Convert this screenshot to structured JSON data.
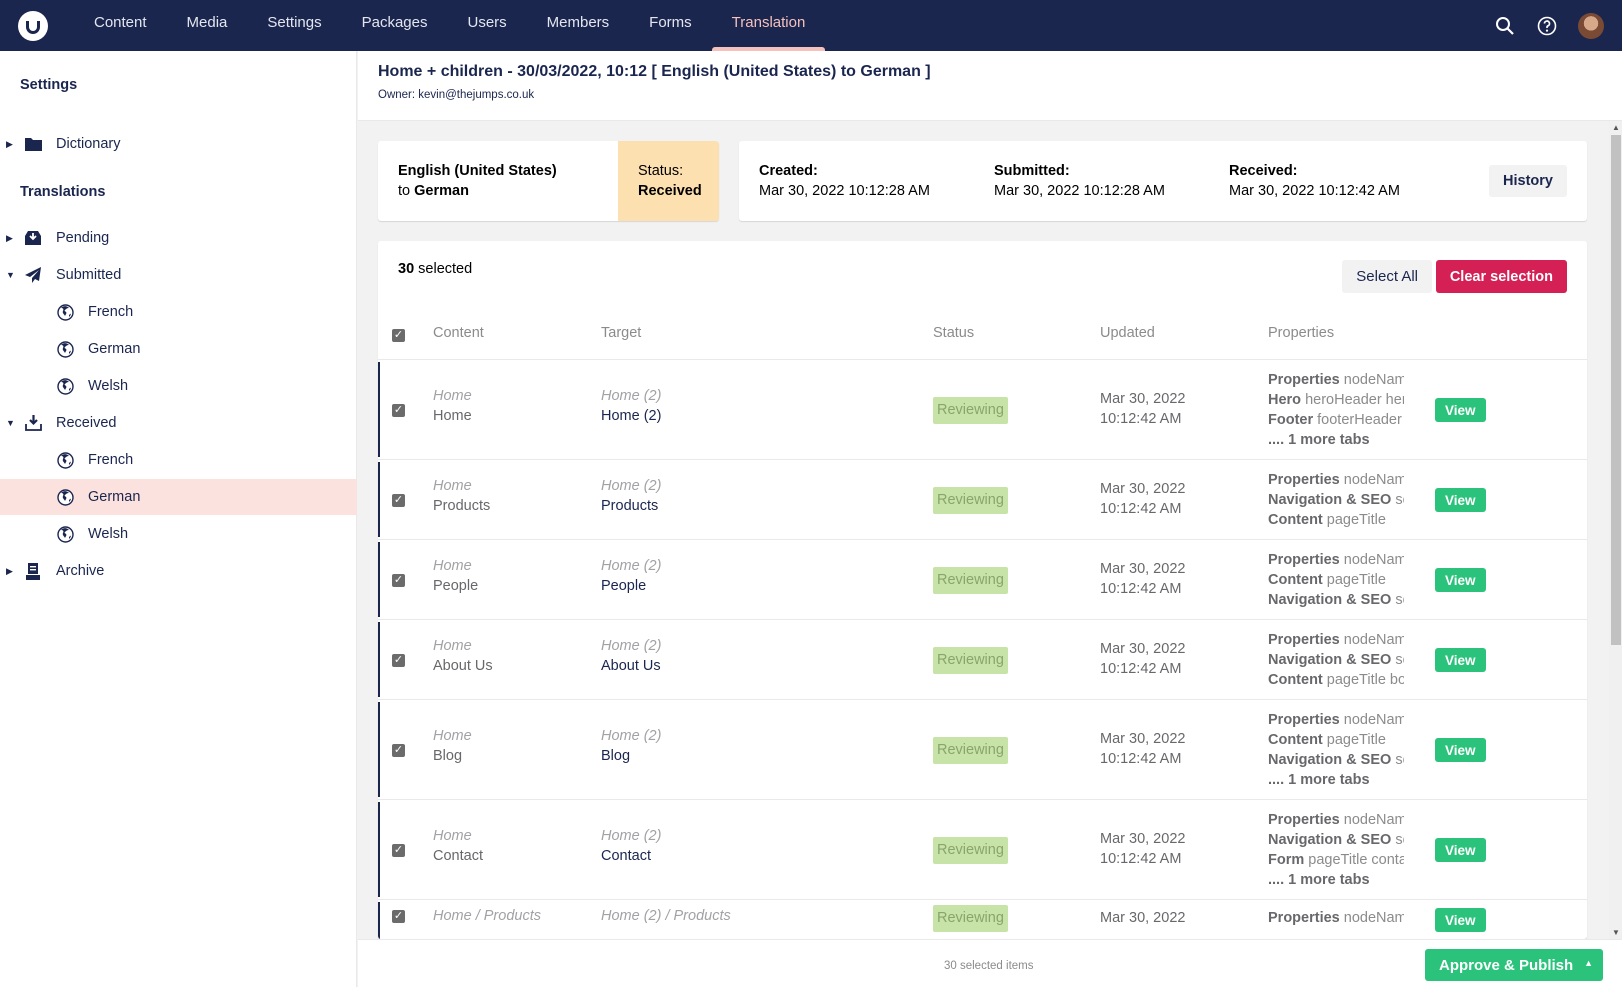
{
  "topbar": {
    "nav": [
      "Content",
      "Media",
      "Settings",
      "Packages",
      "Users",
      "Members",
      "Forms",
      "Translation"
    ],
    "active": "Translation",
    "icons": [
      "search-icon",
      "help-icon",
      "avatar"
    ]
  },
  "sidebar": {
    "settings_heading": "Settings",
    "dictionary": "Dictionary",
    "translations_heading": "Translations",
    "items": [
      {
        "label": "Pending",
        "icon": "inbox-icon",
        "caret": "right",
        "level": 0
      },
      {
        "label": "Submitted",
        "icon": "paper-plane-icon",
        "caret": "down",
        "level": 0
      },
      {
        "label": "French",
        "icon": "globe-icon",
        "level": 1
      },
      {
        "label": "German",
        "icon": "globe-icon",
        "level": 1
      },
      {
        "label": "Welsh",
        "icon": "globe-icon",
        "level": 1
      },
      {
        "label": "Received",
        "icon": "download-icon",
        "caret": "down",
        "level": 0
      },
      {
        "label": "French",
        "icon": "globe-icon",
        "level": 1
      },
      {
        "label": "German",
        "icon": "globe-icon",
        "level": 1,
        "selected": true
      },
      {
        "label": "Welsh",
        "icon": "globe-icon",
        "level": 1
      },
      {
        "label": "Archive",
        "icon": "archive-icon",
        "caret": "right",
        "level": 0
      }
    ]
  },
  "header": {
    "title": "Home + children - 30/03/2022, 10:12 [ English (United States) to German ]",
    "owner": "Owner: kevin@thejumps.co.uk"
  },
  "summary": {
    "source": "English (United States)",
    "to": "to",
    "target": "German",
    "status_label": "Status:",
    "status": "Received",
    "status_color": "#fde0b0",
    "created_label": "Created:",
    "created": "Mar 30, 2022 10:12:28 AM",
    "submitted_label": "Submitted:",
    "submitted": "Mar 30, 2022 10:12:28 AM",
    "received_label": "Received:",
    "received": "Mar 30, 2022 10:12:42 AM",
    "history": "History"
  },
  "table": {
    "selected_count": "30",
    "selected_suffix": "selected",
    "select_all": "Select All",
    "clear_selection": "Clear selection",
    "columns": [
      "Content",
      "Target",
      "Status",
      "Updated",
      "Properties"
    ],
    "view_label": "View",
    "rows": [
      {
        "path": "Home",
        "name": "Home",
        "tpath": "Home (2)",
        "tname": "Home (2)",
        "status": "Reviewing",
        "updated": [
          "Mar 30, 2022",
          "10:12:42 AM"
        ],
        "props": [
          [
            "Properties",
            "nodeName"
          ],
          [
            "Hero",
            "heroHeader heroSubheader"
          ],
          [
            "Footer",
            "footerHeader footer"
          ]
        ],
        "more": ".... 1 more tabs"
      },
      {
        "path": "Home",
        "name": "Products",
        "tpath": "Home (2)",
        "tname": "Products",
        "status": "Reviewing",
        "updated": [
          "Mar 30, 2022",
          "10:12:42 AM"
        ],
        "props": [
          [
            "Properties",
            "nodeName"
          ],
          [
            "Navigation & SEO",
            "seo"
          ],
          [
            "Content",
            "pageTitle"
          ]
        ],
        "more": ""
      },
      {
        "path": "Home",
        "name": "People",
        "tpath": "Home (2)",
        "tname": "People",
        "status": "Reviewing",
        "updated": [
          "Mar 30, 2022",
          "10:12:42 AM"
        ],
        "props": [
          [
            "Properties",
            "nodeName"
          ],
          [
            "Content",
            "pageTitle"
          ],
          [
            "Navigation & SEO",
            "seo"
          ]
        ],
        "more": ""
      },
      {
        "path": "Home",
        "name": "About Us",
        "tpath": "Home (2)",
        "tname": "About Us",
        "status": "Reviewing",
        "updated": [
          "Mar 30, 2022",
          "10:12:42 AM"
        ],
        "props": [
          [
            "Properties",
            "nodeName"
          ],
          [
            "Navigation & SEO",
            "seo"
          ],
          [
            "Content",
            "pageTitle bodyText"
          ]
        ],
        "more": ""
      },
      {
        "path": "Home",
        "name": "Blog",
        "tpath": "Home (2)",
        "tname": "Blog",
        "status": "Reviewing",
        "updated": [
          "Mar 30, 2022",
          "10:12:42 AM"
        ],
        "props": [
          [
            "Properties",
            "nodeName"
          ],
          [
            "Content",
            "pageTitle"
          ],
          [
            "Navigation & SEO",
            "seo"
          ]
        ],
        "more": ".... 1 more tabs"
      },
      {
        "path": "Home",
        "name": "Contact",
        "tpath": "Home (2)",
        "tname": "Contact",
        "status": "Reviewing",
        "updated": [
          "Mar 30, 2022",
          "10:12:42 AM"
        ],
        "props": [
          [
            "Properties",
            "nodeName"
          ],
          [
            "Navigation & SEO",
            "seo"
          ],
          [
            "Form",
            "pageTitle contactForm"
          ]
        ],
        "more": ".... 1 more tabs"
      },
      {
        "path": "Home / Products",
        "name": "",
        "tpath": "Home (2) / Products",
        "tname": "",
        "status": "Reviewing",
        "updated": [
          "Mar 30, 2022",
          ""
        ],
        "props": [
          [
            "Properties",
            "nodeName"
          ]
        ],
        "more": ""
      }
    ]
  },
  "footer": {
    "count": "30 selected items",
    "approve": "Approve & Publish"
  },
  "colors": {
    "topbar": "#1b264f",
    "accent": "#f5c1bc",
    "danger": "#d42054",
    "success": "#2bc37c",
    "reviewing": "#c7e3a8",
    "selected_item": "#fce2df"
  }
}
